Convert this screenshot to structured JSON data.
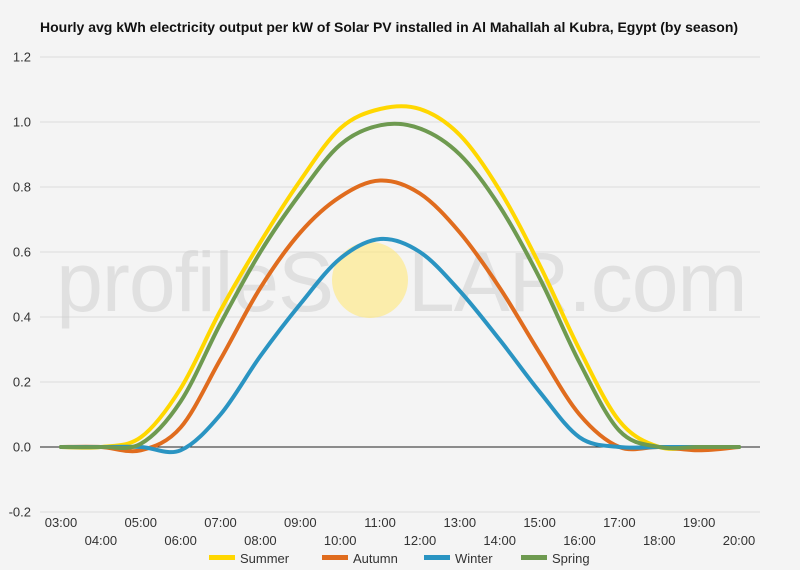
{
  "chart_data": {
    "type": "line",
    "title": "Hourly avg kWh electricity output per kW of Solar PV installed in Al Mahallah al Kubra, Egypt (by season)",
    "xlabel": "",
    "ylabel": "",
    "ylim": [
      -0.2,
      1.2
    ],
    "yticks": [
      "-0.2",
      "0.0",
      "0.2",
      "0.4",
      "0.6",
      "0.8",
      "1.0",
      "1.2"
    ],
    "xticks_upper": [
      "03:00",
      "05:00",
      "07:00",
      "09:00",
      "11:00",
      "13:00",
      "15:00",
      "17:00",
      "19:00"
    ],
    "xticks_lower": [
      "04:00",
      "06:00",
      "08:00",
      "10:00",
      "12:00",
      "14:00",
      "16:00",
      "18:00",
      "20:00"
    ],
    "x": [
      "03:00",
      "04:00",
      "05:00",
      "06:00",
      "07:00",
      "08:00",
      "09:00",
      "10:00",
      "11:00",
      "12:00",
      "13:00",
      "14:00",
      "15:00",
      "16:00",
      "17:00",
      "18:00",
      "19:00",
      "20:00"
    ],
    "grid": true,
    "legend_position": "bottom",
    "series": [
      {
        "name": "Summer",
        "color": "#ffd700",
        "values": [
          0,
          0,
          0.03,
          0.18,
          0.42,
          0.63,
          0.82,
          0.98,
          1.04,
          1.04,
          0.96,
          0.79,
          0.56,
          0.3,
          0.08,
          0.0,
          0,
          0
        ]
      },
      {
        "name": "Autumn",
        "color": "#e06c1e",
        "values": [
          0,
          0,
          -0.01,
          0.06,
          0.27,
          0.49,
          0.66,
          0.77,
          0.82,
          0.78,
          0.66,
          0.49,
          0.29,
          0.1,
          0.0,
          0,
          -0.01,
          0
        ]
      },
      {
        "name": "Winter",
        "color": "#2a94c2",
        "values": [
          0,
          0,
          0,
          -0.01,
          0.1,
          0.28,
          0.44,
          0.58,
          0.64,
          0.6,
          0.48,
          0.33,
          0.17,
          0.03,
          0,
          0,
          0,
          0
        ]
      },
      {
        "name": "Spring",
        "color": "#6e9a50",
        "values": [
          0,
          0,
          0.01,
          0.14,
          0.38,
          0.6,
          0.78,
          0.93,
          0.99,
          0.98,
          0.9,
          0.74,
          0.52,
          0.26,
          0.05,
          0,
          0,
          0
        ]
      }
    ]
  },
  "watermark": {
    "left": "profileS",
    "right": "LAR.com",
    "sun_color": "#ffe87a"
  }
}
